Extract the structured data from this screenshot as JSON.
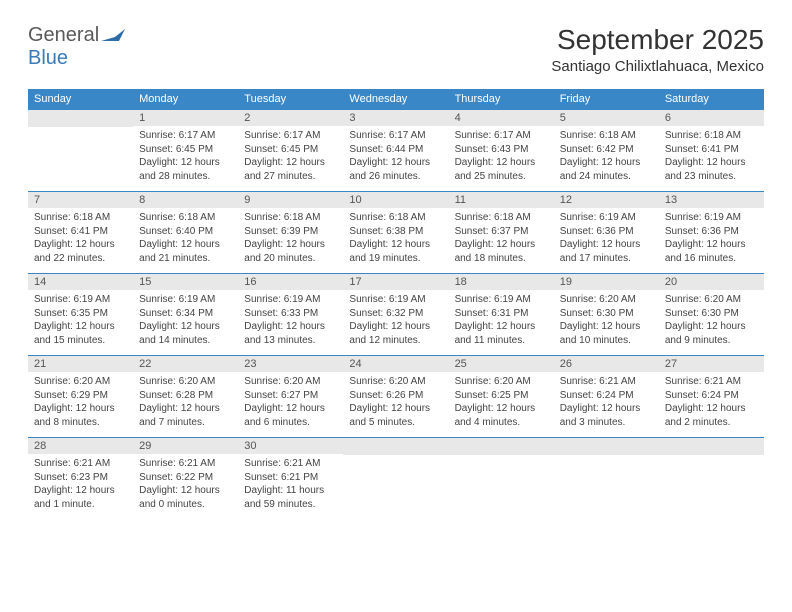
{
  "logo": {
    "text1": "General",
    "text2": "Blue",
    "icon_color": "#2e6ca8"
  },
  "title": "September 2025",
  "location": "Santiago Chilixtlahuaca, Mexico",
  "colors": {
    "header_bg": "#3a87c7",
    "header_text": "#ffffff",
    "daynum_bg": "#e8e8e8",
    "daynum_text": "#555555",
    "border": "#3a87c7"
  },
  "day_headers": [
    "Sunday",
    "Monday",
    "Tuesday",
    "Wednesday",
    "Thursday",
    "Friday",
    "Saturday"
  ],
  "weeks": [
    [
      {
        "num": "",
        "sunrise": "",
        "sunset": "",
        "daylight": ""
      },
      {
        "num": "1",
        "sunrise": "Sunrise: 6:17 AM",
        "sunset": "Sunset: 6:45 PM",
        "daylight": "Daylight: 12 hours and 28 minutes."
      },
      {
        "num": "2",
        "sunrise": "Sunrise: 6:17 AM",
        "sunset": "Sunset: 6:45 PM",
        "daylight": "Daylight: 12 hours and 27 minutes."
      },
      {
        "num": "3",
        "sunrise": "Sunrise: 6:17 AM",
        "sunset": "Sunset: 6:44 PM",
        "daylight": "Daylight: 12 hours and 26 minutes."
      },
      {
        "num": "4",
        "sunrise": "Sunrise: 6:17 AM",
        "sunset": "Sunset: 6:43 PM",
        "daylight": "Daylight: 12 hours and 25 minutes."
      },
      {
        "num": "5",
        "sunrise": "Sunrise: 6:18 AM",
        "sunset": "Sunset: 6:42 PM",
        "daylight": "Daylight: 12 hours and 24 minutes."
      },
      {
        "num": "6",
        "sunrise": "Sunrise: 6:18 AM",
        "sunset": "Sunset: 6:41 PM",
        "daylight": "Daylight: 12 hours and 23 minutes."
      }
    ],
    [
      {
        "num": "7",
        "sunrise": "Sunrise: 6:18 AM",
        "sunset": "Sunset: 6:41 PM",
        "daylight": "Daylight: 12 hours and 22 minutes."
      },
      {
        "num": "8",
        "sunrise": "Sunrise: 6:18 AM",
        "sunset": "Sunset: 6:40 PM",
        "daylight": "Daylight: 12 hours and 21 minutes."
      },
      {
        "num": "9",
        "sunrise": "Sunrise: 6:18 AM",
        "sunset": "Sunset: 6:39 PM",
        "daylight": "Daylight: 12 hours and 20 minutes."
      },
      {
        "num": "10",
        "sunrise": "Sunrise: 6:18 AM",
        "sunset": "Sunset: 6:38 PM",
        "daylight": "Daylight: 12 hours and 19 minutes."
      },
      {
        "num": "11",
        "sunrise": "Sunrise: 6:18 AM",
        "sunset": "Sunset: 6:37 PM",
        "daylight": "Daylight: 12 hours and 18 minutes."
      },
      {
        "num": "12",
        "sunrise": "Sunrise: 6:19 AM",
        "sunset": "Sunset: 6:36 PM",
        "daylight": "Daylight: 12 hours and 17 minutes."
      },
      {
        "num": "13",
        "sunrise": "Sunrise: 6:19 AM",
        "sunset": "Sunset: 6:36 PM",
        "daylight": "Daylight: 12 hours and 16 minutes."
      }
    ],
    [
      {
        "num": "14",
        "sunrise": "Sunrise: 6:19 AM",
        "sunset": "Sunset: 6:35 PM",
        "daylight": "Daylight: 12 hours and 15 minutes."
      },
      {
        "num": "15",
        "sunrise": "Sunrise: 6:19 AM",
        "sunset": "Sunset: 6:34 PM",
        "daylight": "Daylight: 12 hours and 14 minutes."
      },
      {
        "num": "16",
        "sunrise": "Sunrise: 6:19 AM",
        "sunset": "Sunset: 6:33 PM",
        "daylight": "Daylight: 12 hours and 13 minutes."
      },
      {
        "num": "17",
        "sunrise": "Sunrise: 6:19 AM",
        "sunset": "Sunset: 6:32 PM",
        "daylight": "Daylight: 12 hours and 12 minutes."
      },
      {
        "num": "18",
        "sunrise": "Sunrise: 6:19 AM",
        "sunset": "Sunset: 6:31 PM",
        "daylight": "Daylight: 12 hours and 11 minutes."
      },
      {
        "num": "19",
        "sunrise": "Sunrise: 6:20 AM",
        "sunset": "Sunset: 6:30 PM",
        "daylight": "Daylight: 12 hours and 10 minutes."
      },
      {
        "num": "20",
        "sunrise": "Sunrise: 6:20 AM",
        "sunset": "Sunset: 6:30 PM",
        "daylight": "Daylight: 12 hours and 9 minutes."
      }
    ],
    [
      {
        "num": "21",
        "sunrise": "Sunrise: 6:20 AM",
        "sunset": "Sunset: 6:29 PM",
        "daylight": "Daylight: 12 hours and 8 minutes."
      },
      {
        "num": "22",
        "sunrise": "Sunrise: 6:20 AM",
        "sunset": "Sunset: 6:28 PM",
        "daylight": "Daylight: 12 hours and 7 minutes."
      },
      {
        "num": "23",
        "sunrise": "Sunrise: 6:20 AM",
        "sunset": "Sunset: 6:27 PM",
        "daylight": "Daylight: 12 hours and 6 minutes."
      },
      {
        "num": "24",
        "sunrise": "Sunrise: 6:20 AM",
        "sunset": "Sunset: 6:26 PM",
        "daylight": "Daylight: 12 hours and 5 minutes."
      },
      {
        "num": "25",
        "sunrise": "Sunrise: 6:20 AM",
        "sunset": "Sunset: 6:25 PM",
        "daylight": "Daylight: 12 hours and 4 minutes."
      },
      {
        "num": "26",
        "sunrise": "Sunrise: 6:21 AM",
        "sunset": "Sunset: 6:24 PM",
        "daylight": "Daylight: 12 hours and 3 minutes."
      },
      {
        "num": "27",
        "sunrise": "Sunrise: 6:21 AM",
        "sunset": "Sunset: 6:24 PM",
        "daylight": "Daylight: 12 hours and 2 minutes."
      }
    ],
    [
      {
        "num": "28",
        "sunrise": "Sunrise: 6:21 AM",
        "sunset": "Sunset: 6:23 PM",
        "daylight": "Daylight: 12 hours and 1 minute."
      },
      {
        "num": "29",
        "sunrise": "Sunrise: 6:21 AM",
        "sunset": "Sunset: 6:22 PM",
        "daylight": "Daylight: 12 hours and 0 minutes."
      },
      {
        "num": "30",
        "sunrise": "Sunrise: 6:21 AM",
        "sunset": "Sunset: 6:21 PM",
        "daylight": "Daylight: 11 hours and 59 minutes."
      },
      {
        "num": "",
        "sunrise": "",
        "sunset": "",
        "daylight": ""
      },
      {
        "num": "",
        "sunrise": "",
        "sunset": "",
        "daylight": ""
      },
      {
        "num": "",
        "sunrise": "",
        "sunset": "",
        "daylight": ""
      },
      {
        "num": "",
        "sunrise": "",
        "sunset": "",
        "daylight": ""
      }
    ]
  ]
}
